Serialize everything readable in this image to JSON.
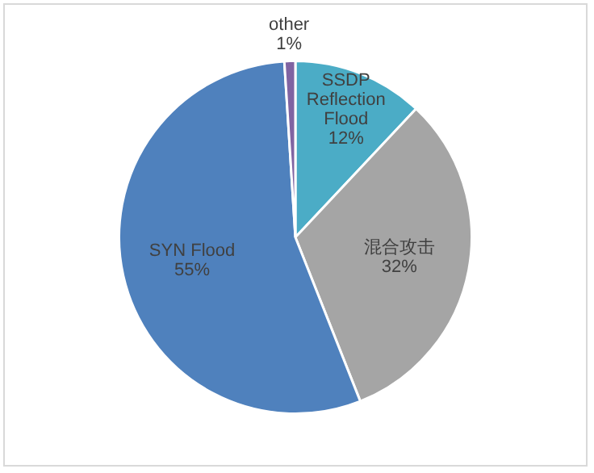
{
  "chart_data": {
    "type": "pie",
    "categories": [
      "SSDP Reflection Flood",
      "混合攻击",
      "SYN Flood",
      "other"
    ],
    "values": [
      12,
      32,
      55,
      1
    ],
    "value_labels": [
      "12%",
      "32%",
      "55%",
      "1%"
    ],
    "colors": [
      "#4bacc6",
      "#a5a5a5",
      "#4f81bd",
      "#8064a2"
    ],
    "legend": false
  }
}
